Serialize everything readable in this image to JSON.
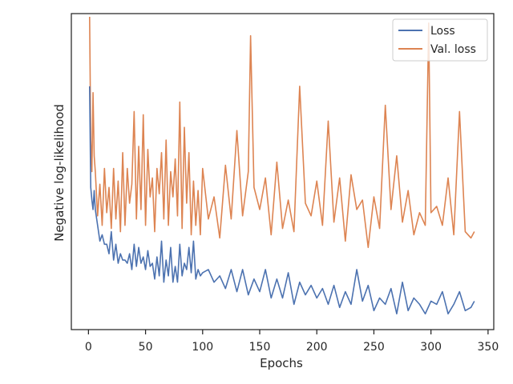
{
  "chart_data": {
    "type": "line",
    "xlabel": "Epochs",
    "ylabel": "Negative log-likelihood",
    "xlim": [
      -15,
      355
    ],
    "ylim": [
      0.0,
      1.0
    ],
    "xticks": [
      0,
      50,
      100,
      150,
      200,
      250,
      300,
      350
    ],
    "y_tick_labels_shown": false,
    "grid": false,
    "legend_position": "top-right",
    "colors": {
      "loss": "#4c72b0",
      "val_loss": "#dd8452"
    },
    "series": [
      {
        "name": "Loss",
        "color": "#4c72b0",
        "x": [
          1,
          2,
          3,
          4,
          5,
          6,
          8,
          10,
          12,
          14,
          16,
          18,
          20,
          22,
          24,
          26,
          28,
          30,
          32,
          34,
          36,
          38,
          40,
          42,
          44,
          46,
          48,
          50,
          52,
          54,
          56,
          58,
          60,
          62,
          64,
          66,
          68,
          70,
          72,
          74,
          76,
          78,
          80,
          82,
          84,
          86,
          88,
          90,
          92,
          94,
          96,
          98,
          100,
          105,
          110,
          115,
          120,
          125,
          130,
          135,
          140,
          145,
          150,
          155,
          160,
          165,
          170,
          175,
          180,
          185,
          190,
          195,
          200,
          205,
          210,
          215,
          220,
          225,
          230,
          235,
          240,
          245,
          250,
          255,
          260,
          265,
          270,
          275,
          280,
          285,
          290,
          295,
          300,
          305,
          310,
          315,
          320,
          325,
          330,
          335,
          338
        ],
        "y": [
          0.77,
          0.45,
          0.41,
          0.38,
          0.44,
          0.38,
          0.33,
          0.28,
          0.3,
          0.27,
          0.27,
          0.24,
          0.31,
          0.22,
          0.27,
          0.21,
          0.24,
          0.22,
          0.22,
          0.21,
          0.24,
          0.19,
          0.27,
          0.2,
          0.26,
          0.21,
          0.23,
          0.19,
          0.25,
          0.2,
          0.21,
          0.16,
          0.23,
          0.17,
          0.28,
          0.15,
          0.22,
          0.17,
          0.26,
          0.15,
          0.2,
          0.15,
          0.27,
          0.17,
          0.21,
          0.19,
          0.26,
          0.18,
          0.28,
          0.16,
          0.19,
          0.17,
          0.18,
          0.19,
          0.15,
          0.17,
          0.13,
          0.19,
          0.12,
          0.19,
          0.11,
          0.16,
          0.12,
          0.19,
          0.1,
          0.16,
          0.1,
          0.18,
          0.08,
          0.15,
          0.11,
          0.14,
          0.1,
          0.13,
          0.08,
          0.14,
          0.07,
          0.12,
          0.08,
          0.19,
          0.09,
          0.14,
          0.06,
          0.1,
          0.08,
          0.13,
          0.05,
          0.15,
          0.06,
          0.1,
          0.08,
          0.05,
          0.09,
          0.08,
          0.12,
          0.05,
          0.08,
          0.12,
          0.06,
          0.07,
          0.09
        ]
      },
      {
        "name": "Val. loss",
        "color": "#dd8452",
        "x": [
          1,
          2,
          3,
          4,
          5,
          6,
          8,
          10,
          12,
          14,
          16,
          18,
          20,
          22,
          24,
          26,
          28,
          30,
          32,
          34,
          36,
          38,
          40,
          42,
          44,
          46,
          48,
          50,
          52,
          54,
          56,
          58,
          60,
          62,
          64,
          66,
          68,
          70,
          72,
          74,
          76,
          78,
          80,
          82,
          84,
          86,
          88,
          90,
          92,
          94,
          96,
          98,
          100,
          105,
          110,
          115,
          120,
          125,
          130,
          135,
          140,
          142,
          145,
          150,
          155,
          160,
          165,
          170,
          175,
          180,
          185,
          190,
          195,
          200,
          205,
          210,
          215,
          220,
          225,
          230,
          235,
          240,
          245,
          250,
          255,
          260,
          265,
          270,
          275,
          280,
          285,
          290,
          295,
          298,
          300,
          305,
          310,
          315,
          320,
          325,
          330,
          335,
          338
        ],
        "y": [
          0.99,
          0.6,
          0.5,
          0.75,
          0.55,
          0.5,
          0.36,
          0.46,
          0.33,
          0.51,
          0.37,
          0.45,
          0.32,
          0.51,
          0.35,
          0.47,
          0.31,
          0.56,
          0.33,
          0.51,
          0.4,
          0.46,
          0.69,
          0.35,
          0.58,
          0.38,
          0.68,
          0.33,
          0.57,
          0.42,
          0.48,
          0.31,
          0.51,
          0.43,
          0.56,
          0.35,
          0.6,
          0.33,
          0.5,
          0.42,
          0.54,
          0.36,
          0.72,
          0.32,
          0.64,
          0.4,
          0.56,
          0.3,
          0.47,
          0.33,
          0.44,
          0.3,
          0.51,
          0.35,
          0.42,
          0.29,
          0.52,
          0.35,
          0.63,
          0.36,
          0.5,
          0.93,
          0.45,
          0.38,
          0.48,
          0.3,
          0.53,
          0.32,
          0.41,
          0.31,
          0.77,
          0.4,
          0.36,
          0.47,
          0.33,
          0.66,
          0.34,
          0.48,
          0.28,
          0.49,
          0.38,
          0.41,
          0.26,
          0.42,
          0.32,
          0.71,
          0.38,
          0.55,
          0.34,
          0.44,
          0.3,
          0.37,
          0.33,
          0.97,
          0.37,
          0.39,
          0.33,
          0.48,
          0.3,
          0.69,
          0.31,
          0.29,
          0.31
        ]
      }
    ]
  }
}
